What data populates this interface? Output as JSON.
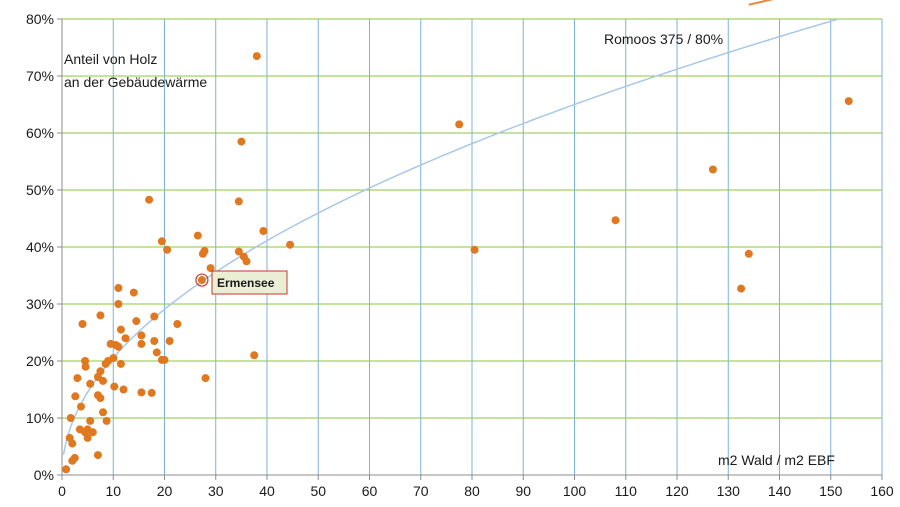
{
  "chart_data": {
    "type": "scatter",
    "title": "",
    "xlabel": "m2 Wald / m2 EBF",
    "ylabel": "Anteil von Holz an der Gebäudewärme",
    "ylabel_lines": [
      "Anteil von Holz",
      "an der Gebäudewärme"
    ],
    "xlim": [
      0,
      160
    ],
    "ylim": [
      0,
      80
    ],
    "x_ticks": [
      "0",
      "10",
      "20",
      "30",
      "40",
      "50",
      "60",
      "70",
      "80",
      "90",
      "100",
      "110",
      "120",
      "130",
      "140",
      "150",
      "160"
    ],
    "y_ticks": [
      "0%",
      "10%",
      "20%",
      "30%",
      "40%",
      "50%",
      "60%",
      "70%",
      "80%"
    ],
    "grid": {
      "vertical": true,
      "horizontal": true
    },
    "colors": {
      "points": "#e07820",
      "trend": "#a9c8e6",
      "vgrid": "#7fb1dc",
      "hgrid": "#8ec63f",
      "callout_border": "#c0392b",
      "callout_fill": "#e9eed5",
      "arrow": "#e98a3a"
    },
    "series": [
      {
        "points": [
          [
            0.8,
            1
          ],
          [
            1.5,
            6.5
          ],
          [
            2,
            5.5
          ],
          [
            1.7,
            10
          ],
          [
            2,
            2.5
          ],
          [
            2.5,
            3
          ],
          [
            3,
            17
          ],
          [
            2.6,
            13.8
          ],
          [
            3.5,
            8
          ],
          [
            3.7,
            12
          ],
          [
            4,
            26.5
          ],
          [
            4.5,
            20
          ],
          [
            4.6,
            19
          ],
          [
            4.5,
            7.5
          ],
          [
            5,
            6.5
          ],
          [
            5,
            8
          ],
          [
            5.5,
            9.5
          ],
          [
            5.5,
            16
          ],
          [
            6,
            7.5
          ],
          [
            7,
            14
          ],
          [
            7,
            17.2
          ],
          [
            7.5,
            18.2
          ],
          [
            7.5,
            13.5
          ],
          [
            7.5,
            28
          ],
          [
            7,
            3.5
          ],
          [
            8,
            11
          ],
          [
            8,
            16.5
          ],
          [
            8.5,
            19.5
          ],
          [
            9,
            20
          ],
          [
            8.7,
            9.5
          ],
          [
            10,
            20.5
          ],
          [
            9.5,
            23
          ],
          [
            10.2,
            15.5
          ],
          [
            10.5,
            22.8
          ],
          [
            11,
            32.8
          ],
          [
            11,
            30
          ],
          [
            11,
            22.5
          ],
          [
            11.5,
            19.5
          ],
          [
            11.5,
            25.5
          ],
          [
            12,
            15
          ],
          [
            12.4,
            24
          ],
          [
            14,
            32
          ],
          [
            14.5,
            27
          ],
          [
            15.5,
            24.5
          ],
          [
            15.5,
            23
          ],
          [
            15.5,
            14.5
          ],
          [
            17,
            48.3
          ],
          [
            17.5,
            14.4
          ],
          [
            18,
            27.8
          ],
          [
            18,
            23.5
          ],
          [
            18.5,
            21.5
          ],
          [
            19.5,
            20.2
          ],
          [
            19.5,
            41
          ],
          [
            20,
            20.2
          ],
          [
            20.5,
            39.5
          ],
          [
            21,
            23.5
          ],
          [
            22.5,
            26.5
          ],
          [
            26.5,
            42
          ],
          [
            27.5,
            38.8
          ],
          [
            27.8,
            39.3
          ],
          [
            28,
            17
          ],
          [
            29,
            36.3
          ],
          [
            34.5,
            48
          ],
          [
            34.5,
            39.2
          ],
          [
            35,
            58.5
          ],
          [
            35.5,
            38.3
          ],
          [
            36,
            37.5
          ],
          [
            37.5,
            21
          ],
          [
            38,
            73.5
          ],
          [
            39.3,
            42.8
          ],
          [
            44.5,
            40.4
          ],
          [
            77.5,
            61.5
          ],
          [
            80.5,
            39.5
          ],
          [
            108,
            44.7
          ],
          [
            127,
            53.6
          ],
          [
            132.5,
            32.7
          ],
          [
            134,
            38.8
          ],
          [
            153.5,
            65.6
          ]
        ]
      }
    ],
    "trend": {
      "type": "power",
      "a": 6.5,
      "b": 0.5
    },
    "annotations": [
      {
        "label": "Ermensee",
        "x": 27.3,
        "y": 34.2
      },
      {
        "label": "Romoos 375 / 80%",
        "arrow_from": [
          134,
          82.5
        ],
        "arrow_to": [
          159.5,
          87.8
        ]
      }
    ]
  }
}
